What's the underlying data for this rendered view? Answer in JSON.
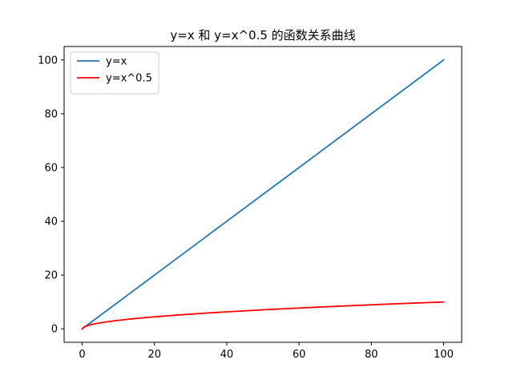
{
  "chart_data": {
    "type": "line",
    "title": "y=x 和 y=x^0.5 的函数关系曲线",
    "xlabel": "",
    "ylabel": "",
    "xlim": [
      -5,
      105
    ],
    "ylim": [
      -5,
      105
    ],
    "xticks": [
      0,
      20,
      40,
      60,
      80,
      100
    ],
    "yticks": [
      0,
      20,
      40,
      60,
      80,
      100
    ],
    "grid": false,
    "legend_position": "top-left",
    "series": [
      {
        "name": "y=x",
        "color": "#1f77b4",
        "function": "x",
        "x": [
          0,
          100
        ],
        "y": [
          0,
          100
        ]
      },
      {
        "name": "y=x^0.5",
        "color": "#ff0000",
        "function": "sqrt",
        "x": [
          0,
          1,
          2,
          5,
          10,
          20,
          40,
          60,
          80,
          100
        ],
        "y": [
          0,
          1,
          1.414,
          2.236,
          3.162,
          4.472,
          6.325,
          7.746,
          8.944,
          10
        ]
      }
    ]
  }
}
